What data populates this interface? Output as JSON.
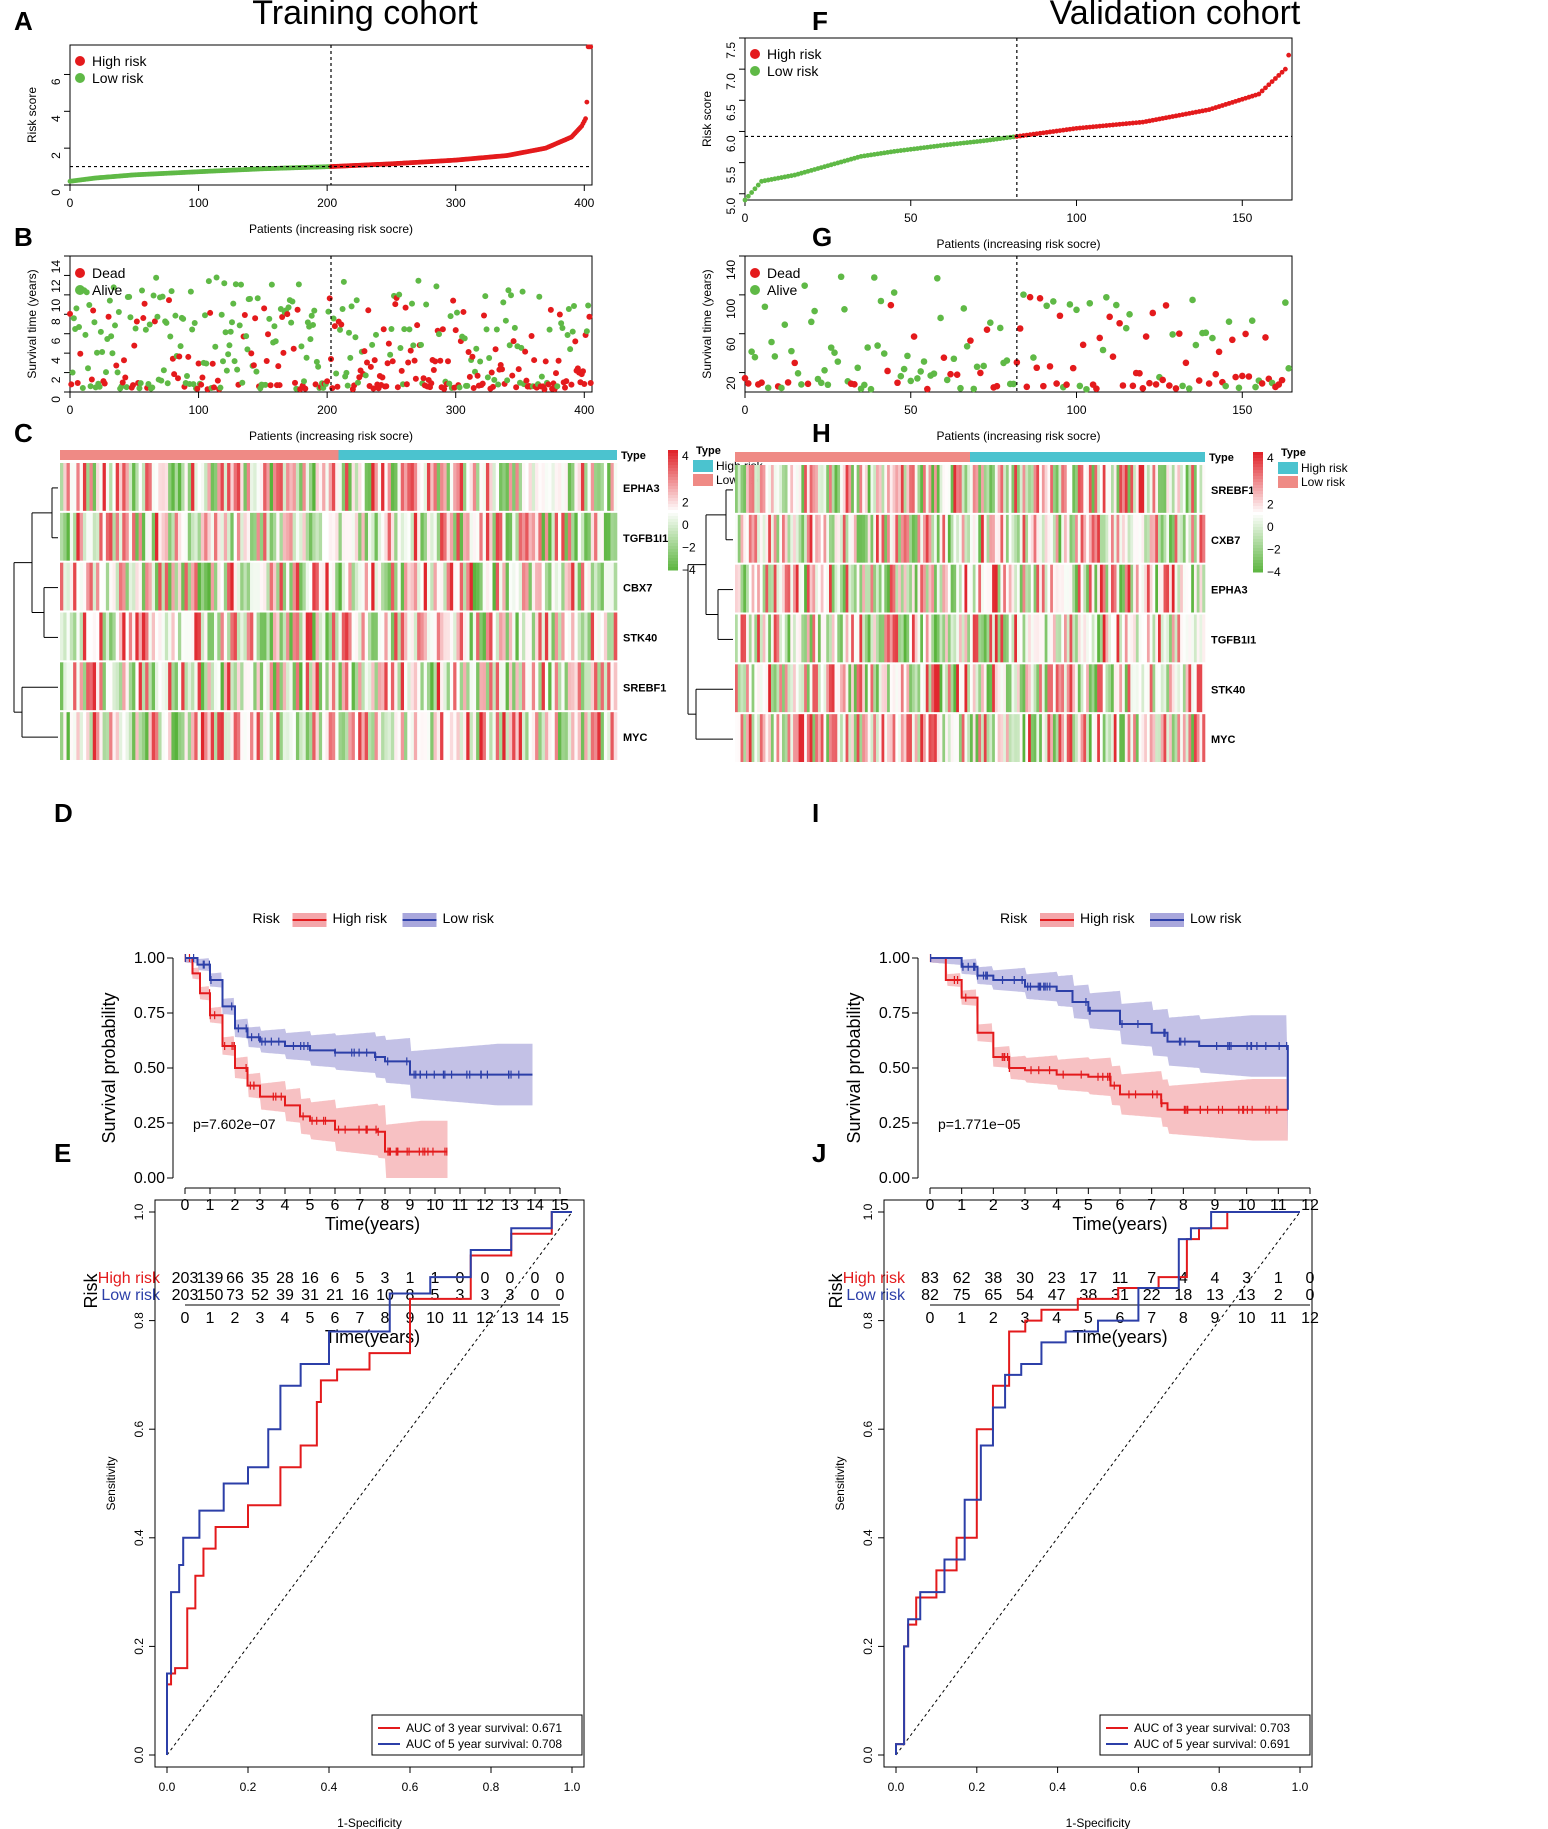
{
  "colors": {
    "high": "#e41a1c",
    "low": "#5fb946",
    "dead": "#e41a1c",
    "alive": "#5fb946",
    "km_high": "#e31a1c",
    "km_low": "#2c3fa8",
    "km_high_band": "#f4a6aa",
    "km_low_band": "#a9a7dc",
    "type_high": "#4bc3cf",
    "type_low": "#ef8a85",
    "heat_pos": "#e0242b",
    "heat_neg": "#58b33a"
  },
  "titles": {
    "left": "Training cohort",
    "right": "Validation cohort"
  },
  "letters": [
    "A",
    "B",
    "C",
    "D",
    "E",
    "F",
    "G",
    "H",
    "I",
    "J"
  ],
  "labels": {
    "risk_score": "Risk score",
    "survival_time": "Survival time (years)",
    "patients": "Patients (increasing risk socre)",
    "survival_prob": "Survival probability",
    "time_years": "Time(years)",
    "risk": "Risk",
    "sensitivity": "Sensitivity",
    "one_minus_spec": "1-Specificity",
    "type": "Type"
  },
  "legends": {
    "high_risk": "High risk",
    "low_risk": "Low risk",
    "dead": "Dead",
    "alive": "Alive",
    "auc3_prefix": "AUC of 3 year survival:",
    "auc5_prefix": "AUC of 5 year survival:"
  },
  "chart_data": [
    {
      "id": "A",
      "type": "scatter",
      "title": "Training cohort",
      "xlabel": "Patients (increasing risk socre)",
      "ylabel": "Risk score",
      "xlim": [
        0,
        406
      ],
      "ylim": [
        0,
        7.6
      ],
      "xticks": [
        0,
        100,
        200,
        300,
        400
      ],
      "yticks": [
        0,
        2,
        4,
        6
      ],
      "n": 406,
      "cutoff_index": 203,
      "cutoff_value": 1.0,
      "curve_points": [
        [
          0,
          0.2
        ],
        [
          20,
          0.38
        ],
        [
          50,
          0.55
        ],
        [
          100,
          0.72
        ],
        [
          150,
          0.88
        ],
        [
          203,
          1.0
        ],
        [
          250,
          1.15
        ],
        [
          300,
          1.35
        ],
        [
          340,
          1.6
        ],
        [
          370,
          2.0
        ],
        [
          390,
          2.6
        ],
        [
          398,
          3.2
        ],
        [
          401,
          3.6
        ],
        [
          402,
          4.5
        ],
        [
          403,
          7.5
        ]
      ],
      "legend": [
        "High risk",
        "Low risk"
      ]
    },
    {
      "id": "B",
      "type": "scatter",
      "xlabel": "Patients (increasing risk socre)",
      "ylabel": "Survival time (years)",
      "xlim": [
        0,
        406
      ],
      "ylim": [
        0,
        14
      ],
      "xticks": [
        0,
        100,
        200,
        300,
        400
      ],
      "yticks": [
        0,
        2,
        4,
        6,
        8,
        10,
        12,
        14
      ],
      "cutoff_index": 203,
      "legend": [
        "Dead",
        "Alive"
      ]
    },
    {
      "id": "C",
      "type": "heatmap",
      "genes": [
        "EPHA3",
        "TGFB1I1",
        "CBX7",
        "STK40",
        "SREBF1",
        "MYC"
      ],
      "legend_title": "Type",
      "groups": [
        "High risk",
        "Low risk"
      ],
      "scale_ticks": [
        4,
        2,
        0,
        -2,
        -4
      ]
    },
    {
      "id": "D",
      "type": "line",
      "subtype": "kaplan-meier",
      "xlabel": "Time(years)",
      "ylabel": "Survival probability",
      "xlim": [
        0,
        15
      ],
      "ylim": [
        0,
        1
      ],
      "xticks": [
        0,
        1,
        2,
        3,
        4,
        5,
        6,
        7,
        8,
        9,
        10,
        11,
        12,
        13,
        14,
        15
      ],
      "yticks": [
        0.0,
        0.25,
        0.5,
        0.75,
        1.0
      ],
      "pvalue": "p=7.602e−07",
      "legend_title": "Risk",
      "series": [
        {
          "name": "High risk",
          "points": [
            [
              0,
              1
            ],
            [
              0.3,
              0.93
            ],
            [
              0.6,
              0.84
            ],
            [
              1,
              0.74
            ],
            [
              1.5,
              0.6
            ],
            [
              2,
              0.5
            ],
            [
              2.5,
              0.42
            ],
            [
              3,
              0.37
            ],
            [
              4,
              0.33
            ],
            [
              4.6,
              0.28
            ],
            [
              5,
              0.26
            ],
            [
              6,
              0.22
            ],
            [
              7.7,
              0.21
            ],
            [
              8,
              0.12
            ],
            [
              10.5,
              0.12
            ]
          ]
        },
        {
          "name": "Low risk",
          "points": [
            [
              0,
              1
            ],
            [
              0.5,
              0.97
            ],
            [
              1,
              0.9
            ],
            [
              1.5,
              0.78
            ],
            [
              2,
              0.68
            ],
            [
              2.5,
              0.64
            ],
            [
              3,
              0.62
            ],
            [
              4,
              0.6
            ],
            [
              5,
              0.58
            ],
            [
              6,
              0.57
            ],
            [
              7.6,
              0.55
            ],
            [
              8,
              0.53
            ],
            [
              9,
              0.47
            ],
            [
              13.9,
              0.47
            ]
          ]
        }
      ],
      "risk_table": {
        "times": [
          0,
          1,
          2,
          3,
          4,
          5,
          6,
          7,
          8,
          9,
          10,
          11,
          12,
          13,
          14,
          15
        ],
        "High risk": [
          203,
          139,
          66,
          35,
          28,
          16,
          6,
          5,
          3,
          1,
          1,
          0,
          0,
          0,
          0,
          0
        ],
        "Low risk": [
          203,
          150,
          73,
          52,
          39,
          31,
          21,
          16,
          10,
          8,
          5,
          3,
          3,
          3,
          0,
          0
        ]
      }
    },
    {
      "id": "E",
      "type": "line",
      "subtype": "roc",
      "xlabel": "1-Specificity",
      "ylabel": "Sensitivity",
      "xlim": [
        0,
        1
      ],
      "ylim": [
        0,
        1
      ],
      "xticks": [
        0.0,
        0.2,
        0.4,
        0.6,
        0.8,
        1.0
      ],
      "yticks": [
        0.0,
        0.2,
        0.4,
        0.6,
        0.8,
        1.0
      ],
      "series": [
        {
          "name": "AUC of 3 year survival",
          "auc": "0.671",
          "points": [
            [
              0,
              0
            ],
            [
              0.01,
              0.13
            ],
            [
              0.02,
              0.15
            ],
            [
              0.05,
              0.16
            ],
            [
              0.07,
              0.27
            ],
            [
              0.09,
              0.33
            ],
            [
              0.12,
              0.38
            ],
            [
              0.2,
              0.42
            ],
            [
              0.28,
              0.46
            ],
            [
              0.33,
              0.53
            ],
            [
              0.37,
              0.57
            ],
            [
              0.38,
              0.65
            ],
            [
              0.42,
              0.69
            ],
            [
              0.5,
              0.71
            ],
            [
              0.6,
              0.74
            ],
            [
              0.75,
              0.84
            ],
            [
              0.85,
              0.92
            ],
            [
              0.95,
              0.96
            ],
            [
              1,
              1
            ]
          ]
        },
        {
          "name": "AUC of 5 year survival",
          "auc": "0.708",
          "points": [
            [
              0,
              0
            ],
            [
              0.01,
              0.15
            ],
            [
              0.03,
              0.3
            ],
            [
              0.04,
              0.35
            ],
            [
              0.08,
              0.4
            ],
            [
              0.14,
              0.45
            ],
            [
              0.2,
              0.5
            ],
            [
              0.25,
              0.53
            ],
            [
              0.28,
              0.6
            ],
            [
              0.33,
              0.68
            ],
            [
              0.4,
              0.72
            ],
            [
              0.55,
              0.78
            ],
            [
              0.65,
              0.85
            ],
            [
              0.75,
              0.88
            ],
            [
              0.85,
              0.93
            ],
            [
              0.95,
              0.97
            ],
            [
              1,
              1
            ]
          ]
        }
      ]
    },
    {
      "id": "F",
      "type": "scatter",
      "title": "Validation cohort",
      "xlabel": "Patients (increasing risk socre)",
      "ylabel": "Risk score",
      "xlim": [
        0,
        165
      ],
      "ylim": [
        4.9,
        7.5
      ],
      "xticks": [
        0,
        50,
        100,
        150
      ],
      "yticks": [
        5.0,
        5.5,
        6.0,
        6.5,
        7.0,
        7.5
      ],
      "n": 165,
      "cutoff_index": 82,
      "cutoff_value": 5.92,
      "curve_points": [
        [
          0,
          4.9
        ],
        [
          5,
          5.2
        ],
        [
          15,
          5.3
        ],
        [
          25,
          5.45
        ],
        [
          35,
          5.6
        ],
        [
          45,
          5.68
        ],
        [
          60,
          5.78
        ],
        [
          72,
          5.85
        ],
        [
          82,
          5.92
        ],
        [
          100,
          6.05
        ],
        [
          120,
          6.15
        ],
        [
          140,
          6.35
        ],
        [
          155,
          6.6
        ],
        [
          160,
          6.85
        ],
        [
          163,
          7.0
        ],
        [
          165,
          7.45
        ]
      ],
      "legend": [
        "High risk",
        "Low risk"
      ]
    },
    {
      "id": "G",
      "type": "scatter",
      "xlabel": "Patients (increasing risk socre)",
      "ylabel": "Survival time (years)",
      "xlim": [
        0,
        165
      ],
      "ylim": [
        0,
        140
      ],
      "xticks": [
        0,
        50,
        100,
        150
      ],
      "yticks": [
        20,
        60,
        100,
        140
      ],
      "cutoff_index": 82,
      "legend": [
        "Dead",
        "Alive"
      ]
    },
    {
      "id": "H",
      "type": "heatmap",
      "genes": [
        "SREBF1",
        "CXB7",
        "EPHA3",
        "TGFB1I1",
        "STK40",
        "MYC"
      ],
      "legend_title": "Type",
      "groups": [
        "High risk",
        "Low risk"
      ],
      "scale_ticks": [
        4,
        2,
        0,
        -2,
        -4
      ]
    },
    {
      "id": "I",
      "type": "line",
      "subtype": "kaplan-meier",
      "xlabel": "Time(years)",
      "ylabel": "Survival probability",
      "xlim": [
        0,
        12
      ],
      "ylim": [
        0,
        1
      ],
      "xticks": [
        0,
        1,
        2,
        3,
        4,
        5,
        6,
        7,
        8,
        9,
        10,
        11,
        12
      ],
      "yticks": [
        0.0,
        0.25,
        0.5,
        0.75,
        1.0
      ],
      "pvalue": "p=1.771e−05",
      "legend_title": "Risk",
      "series": [
        {
          "name": "High risk",
          "points": [
            [
              0,
              1
            ],
            [
              0.5,
              0.9
            ],
            [
              1,
              0.82
            ],
            [
              1.5,
              0.66
            ],
            [
              2,
              0.55
            ],
            [
              2.5,
              0.5
            ],
            [
              3,
              0.49
            ],
            [
              4,
              0.47
            ],
            [
              5,
              0.46
            ],
            [
              5.7,
              0.42
            ],
            [
              6,
              0.38
            ],
            [
              7.3,
              0.34
            ],
            [
              7.5,
              0.31
            ],
            [
              11.3,
              0.31
            ]
          ]
        },
        {
          "name": "Low risk",
          "points": [
            [
              0,
              1
            ],
            [
              1,
              0.96
            ],
            [
              1.5,
              0.92
            ],
            [
              2,
              0.9
            ],
            [
              3,
              0.87
            ],
            [
              4,
              0.85
            ],
            [
              4.5,
              0.8
            ],
            [
              5,
              0.76
            ],
            [
              6,
              0.7
            ],
            [
              7,
              0.66
            ],
            [
              7.5,
              0.62
            ],
            [
              8.5,
              0.6
            ],
            [
              11.2,
              0.6
            ],
            [
              11.3,
              0.31
            ]
          ]
        }
      ],
      "risk_table": {
        "times": [
          0,
          1,
          2,
          3,
          4,
          5,
          6,
          7,
          8,
          9,
          10,
          11,
          12
        ],
        "High risk": [
          83,
          62,
          38,
          30,
          23,
          17,
          11,
          7,
          4,
          4,
          3,
          1,
          0
        ],
        "Low risk": [
          82,
          75,
          65,
          54,
          47,
          38,
          31,
          22,
          18,
          13,
          13,
          2,
          0
        ]
      }
    },
    {
      "id": "J",
      "type": "line",
      "subtype": "roc",
      "xlabel": "1-Specificity",
      "ylabel": "Sensitivity",
      "xlim": [
        0,
        1
      ],
      "ylim": [
        0,
        1
      ],
      "xticks": [
        0.0,
        0.2,
        0.4,
        0.6,
        0.8,
        1.0
      ],
      "yticks": [
        0.0,
        0.2,
        0.4,
        0.6,
        0.8,
        1.0
      ],
      "series": [
        {
          "name": "AUC of 3 year survival",
          "auc": "0.703",
          "points": [
            [
              0,
              0
            ],
            [
              0.02,
              0.02
            ],
            [
              0.03,
              0.2
            ],
            [
              0.05,
              0.24
            ],
            [
              0.1,
              0.29
            ],
            [
              0.15,
              0.34
            ],
            [
              0.2,
              0.4
            ],
            [
              0.24,
              0.6
            ],
            [
              0.28,
              0.68
            ],
            [
              0.32,
              0.78
            ],
            [
              0.36,
              0.8
            ],
            [
              0.45,
              0.82
            ],
            [
              0.55,
              0.84
            ],
            [
              0.65,
              0.86
            ],
            [
              0.72,
              0.88
            ],
            [
              0.75,
              0.95
            ],
            [
              0.82,
              0.97
            ],
            [
              0.88,
              1
            ],
            [
              1,
              1
            ]
          ]
        },
        {
          "name": "AUC of 5 year survival",
          "auc": "0.691",
          "points": [
            [
              0,
              0
            ],
            [
              0.02,
              0.02
            ],
            [
              0.03,
              0.2
            ],
            [
              0.06,
              0.25
            ],
            [
              0.12,
              0.3
            ],
            [
              0.17,
              0.36
            ],
            [
              0.21,
              0.47
            ],
            [
              0.24,
              0.57
            ],
            [
              0.27,
              0.64
            ],
            [
              0.31,
              0.7
            ],
            [
              0.36,
              0.72
            ],
            [
              0.42,
              0.76
            ],
            [
              0.5,
              0.78
            ],
            [
              0.6,
              0.8
            ],
            [
              0.7,
              0.86
            ],
            [
              0.73,
              0.95
            ],
            [
              0.78,
              0.97
            ],
            [
              0.85,
              1
            ],
            [
              1,
              1
            ]
          ]
        }
      ]
    }
  ]
}
